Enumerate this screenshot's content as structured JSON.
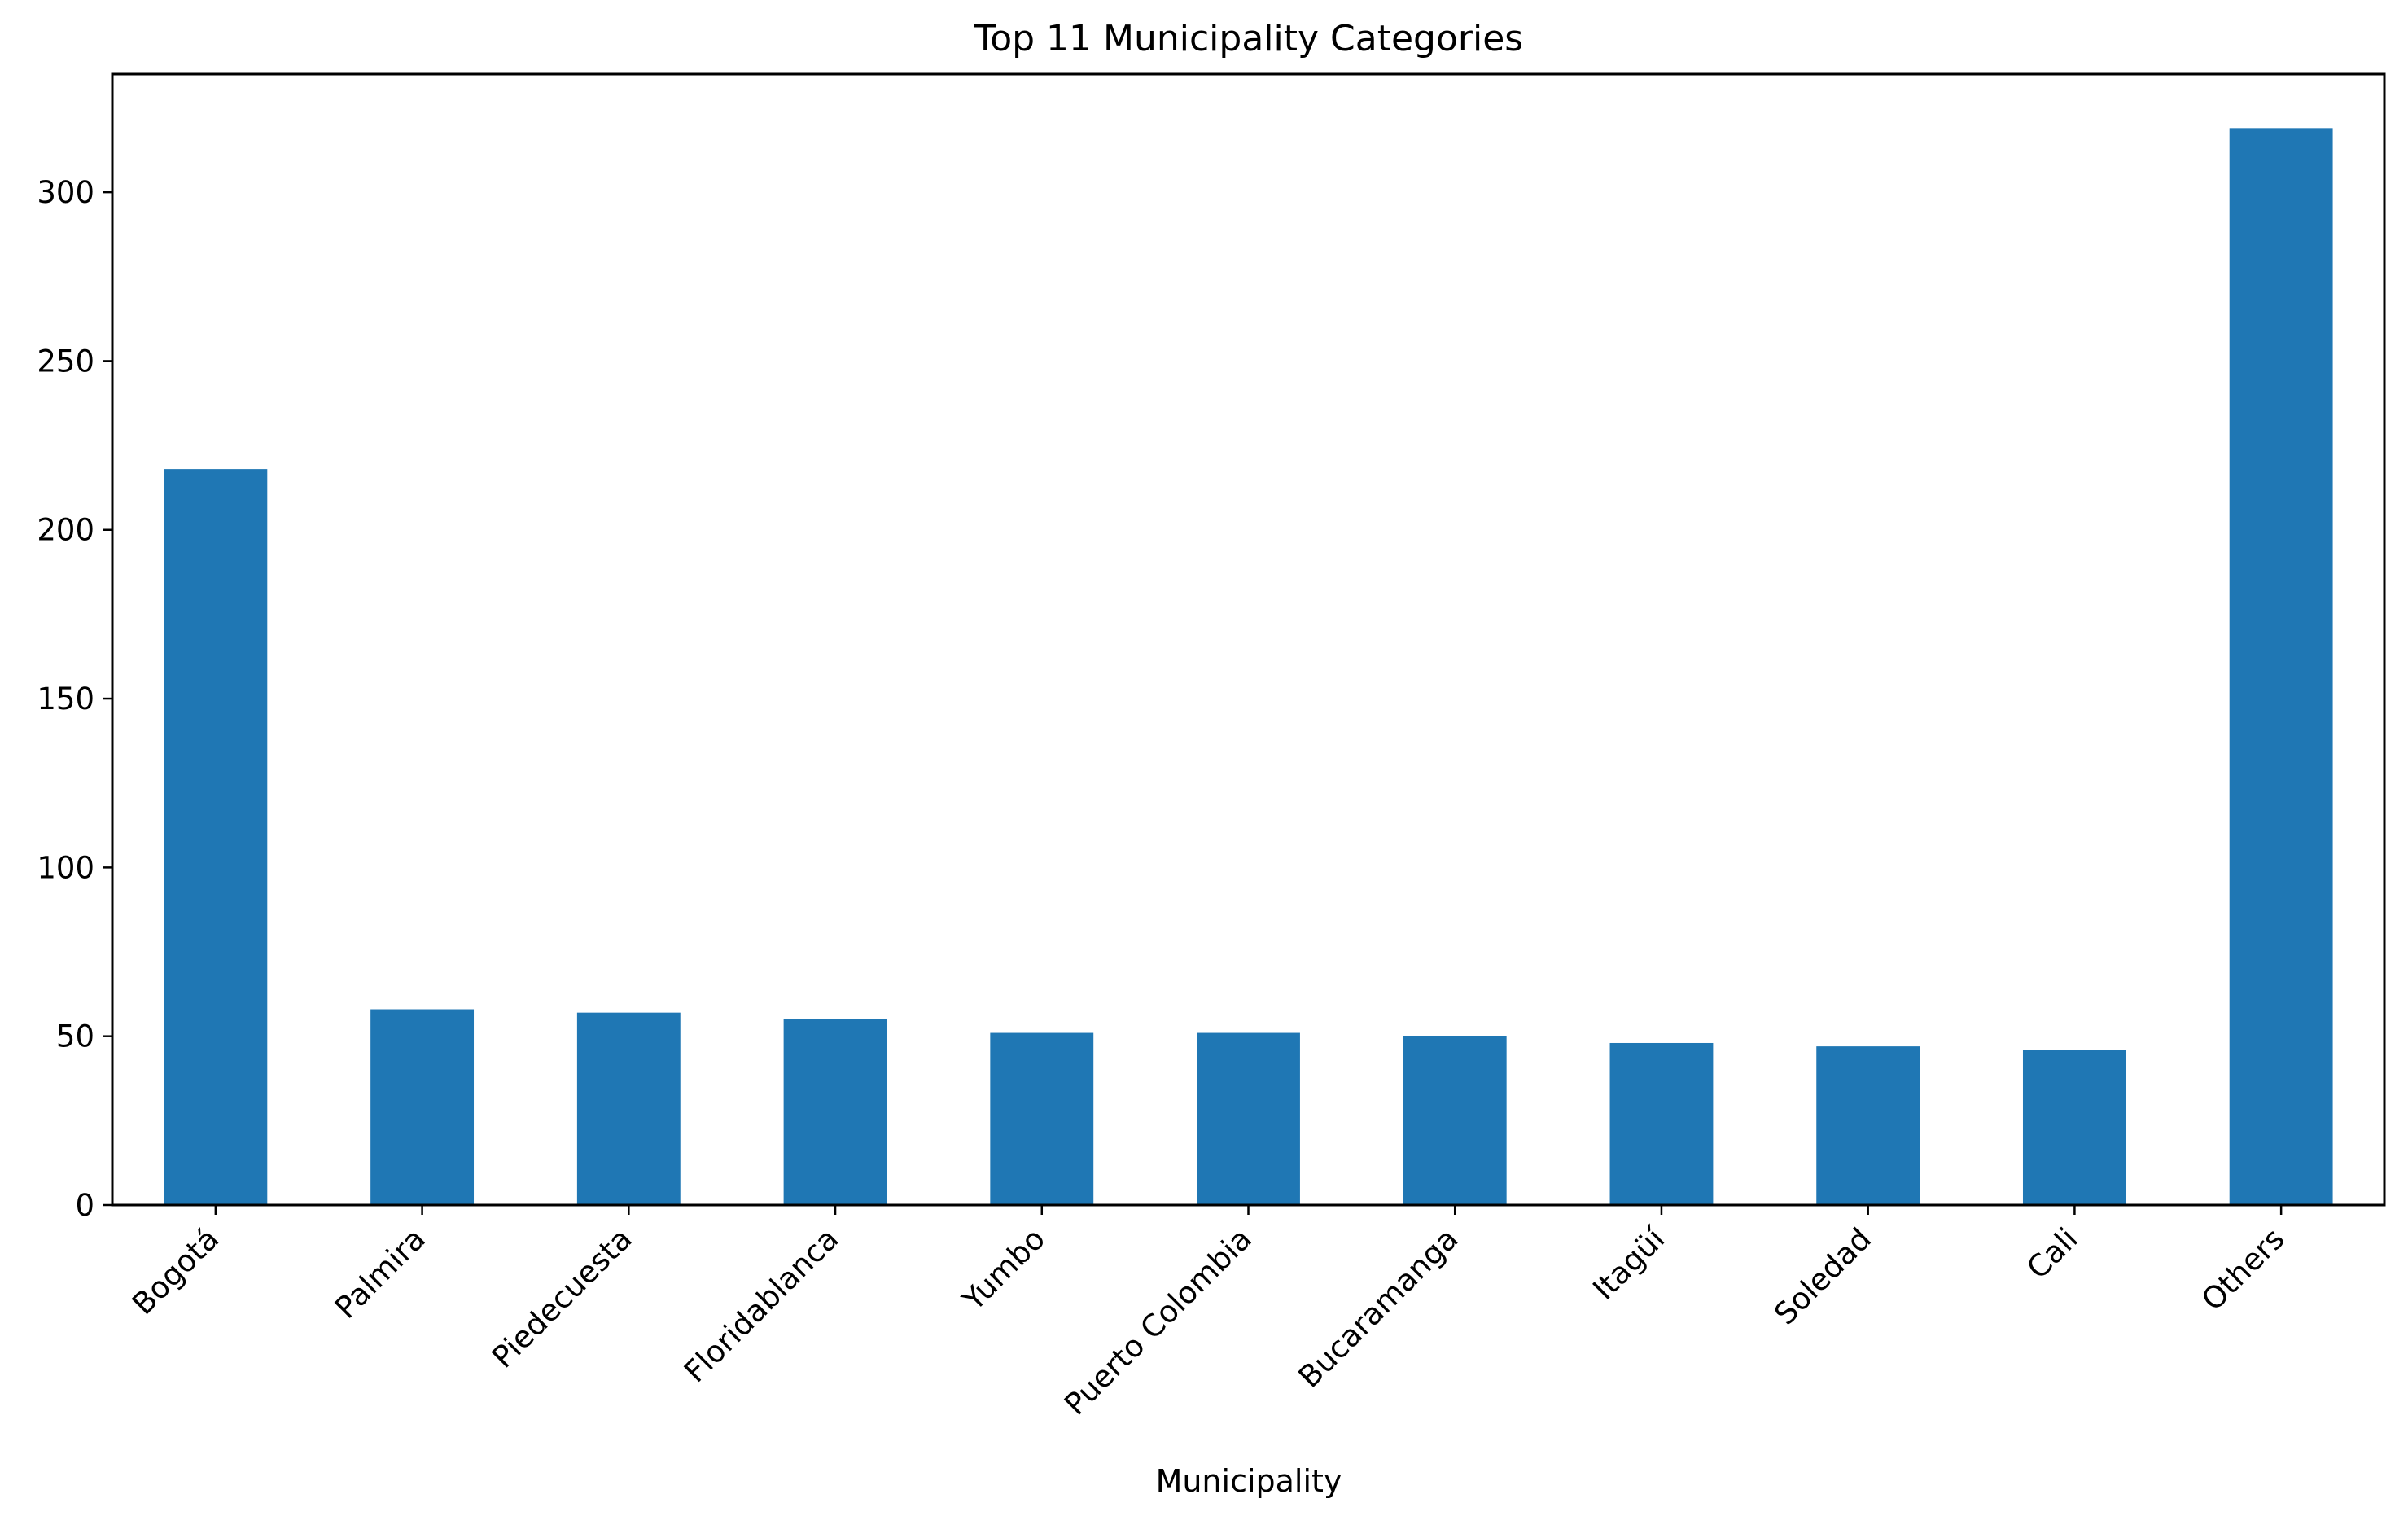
{
  "chart_data": {
    "type": "bar",
    "title": "Top 11 Municipality Categories",
    "xlabel": "Municipality",
    "ylabel": "",
    "categories": [
      "Bogotá",
      "Palmira",
      "Piedecuesta",
      "Floridablanca",
      "Yumbo",
      "Puerto Colombia",
      "Bucaramanga",
      "Itagüí",
      "Soledad",
      "Cali",
      "Others"
    ],
    "values": [
      218,
      58,
      57,
      55,
      51,
      51,
      50,
      48,
      47,
      46,
      319
    ],
    "ylim": [
      0,
      335
    ],
    "yticks": [
      0,
      50,
      100,
      150,
      200,
      250,
      300
    ],
    "grid": false,
    "legend": "none",
    "bar_color": "#1f77b4"
  }
}
